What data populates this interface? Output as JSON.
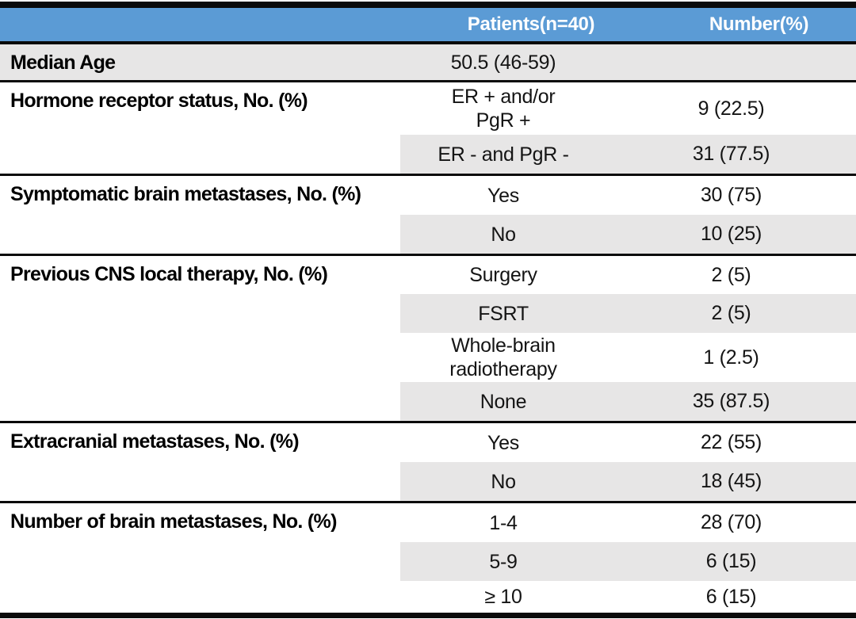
{
  "colors": {
    "header_bg": "#5b9bd5",
    "header_text": "#ffffff",
    "row_shade": "#e7e6e6",
    "rule": "#0a0a0a"
  },
  "header": {
    "col_category": "",
    "col_patients": "Patients(n=40)",
    "col_number": "Number(%)"
  },
  "sections": [
    {
      "label": "Median Age",
      "rows": [
        {
          "value": "50.5 (46-59)",
          "number": ""
        }
      ]
    },
    {
      "label": "Hormone receptor status, No. (%)",
      "rows": [
        {
          "value": "ER + and/or",
          "value2": "PgR +",
          "number": "9 (22.5)"
        },
        {
          "value": "ER - and PgR -",
          "number": "31 (77.5)"
        }
      ]
    },
    {
      "label": "Symptomatic brain metastases, No. (%)",
      "rows": [
        {
          "value": "Yes",
          "number": "30 (75)"
        },
        {
          "value": "No",
          "number": "10 (25)"
        }
      ]
    },
    {
      "label": "Previous CNS local therapy, No. (%)",
      "rows": [
        {
          "value": "Surgery",
          "number": "2 (5)"
        },
        {
          "value": "FSRT",
          "number": "2 (5)"
        },
        {
          "value": "Whole-brain",
          "value2": "radiotherapy",
          "number": "1 (2.5)"
        },
        {
          "value": "None",
          "number": "35 (87.5)"
        }
      ]
    },
    {
      "label": "Extracranial metastases, No. (%)",
      "rows": [
        {
          "value": "Yes",
          "number": "22 (55)"
        },
        {
          "value": "No",
          "number": "18 (45)"
        }
      ]
    },
    {
      "label": "Number of brain metastases, No. (%)",
      "rows": [
        {
          "value": "1-4",
          "number": "28 (70)"
        },
        {
          "value": "5-9",
          "number": "6 (15)"
        },
        {
          "value": "≥ 10",
          "number": "6 (15)"
        }
      ]
    }
  ]
}
